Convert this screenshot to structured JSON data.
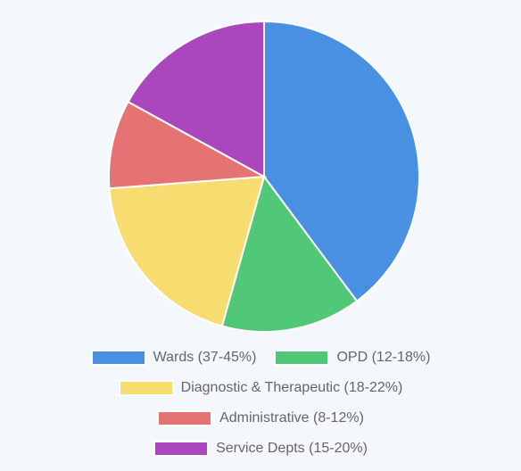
{
  "chart_data": {
    "type": "pie",
    "title": "",
    "categories": [
      "Wards (37-45%)",
      "OPD (12-18%)",
      "Diagnostic & Therapeutic (18-22%)",
      "Administrative (8-12%)",
      "Service Depts (15-20%)"
    ],
    "values": [
      41,
      15,
      20,
      9.5,
      17.5
    ],
    "colors": [
      "#4a90e2",
      "#50c878",
      "#f7dc6f",
      "#e57373",
      "#ab47bc"
    ],
    "legend": "bottom",
    "grid": false
  }
}
